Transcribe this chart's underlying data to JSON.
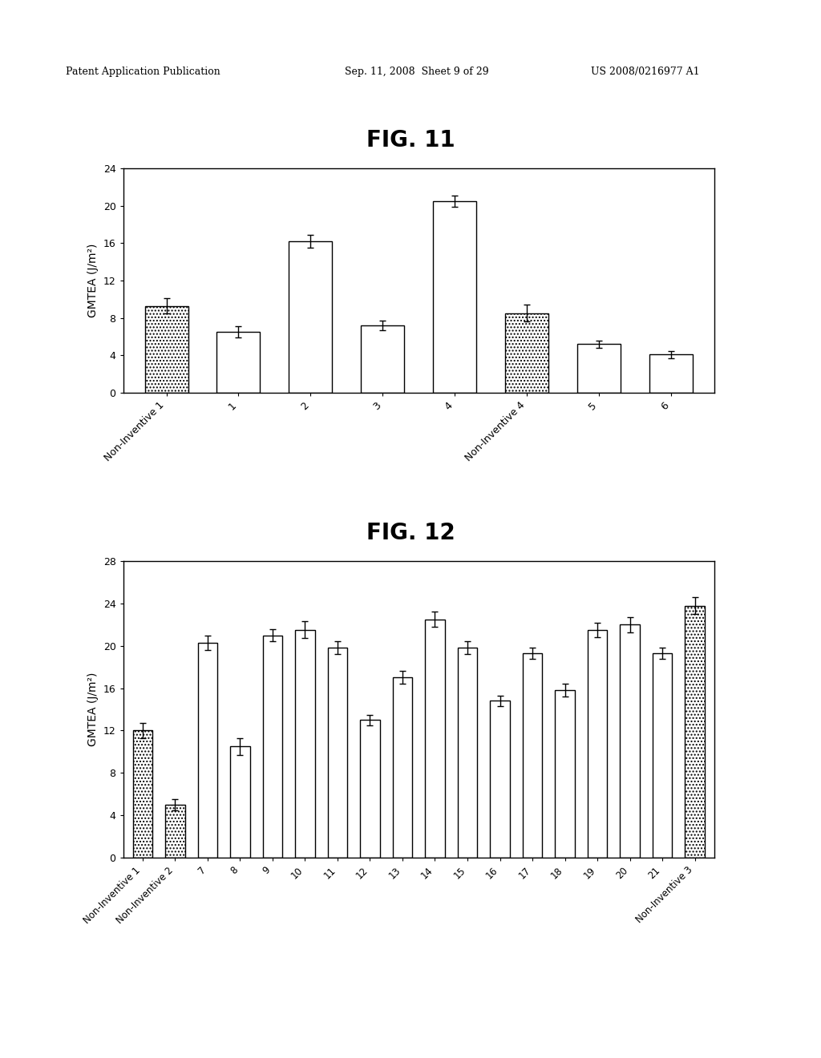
{
  "fig11": {
    "title": "FIG. 11",
    "ylabel": "GMTEA (J/m²)",
    "ylim": [
      0,
      24
    ],
    "yticks": [
      0,
      4,
      8,
      12,
      16,
      20,
      24
    ],
    "categories": [
      "Non-Inventive 1",
      "1",
      "2",
      "3",
      "4",
      "Non-Inventive 4",
      "5",
      "6"
    ],
    "values": [
      9.3,
      6.5,
      16.2,
      7.2,
      20.5,
      8.5,
      5.2,
      4.1
    ],
    "errors": [
      0.8,
      0.6,
      0.7,
      0.5,
      0.6,
      0.9,
      0.4,
      0.4
    ],
    "dotted": [
      true,
      false,
      false,
      false,
      false,
      true,
      false,
      false
    ]
  },
  "fig12": {
    "title": "FIG. 12",
    "ylabel": "GMTEA (J/m²)",
    "ylim": [
      0,
      28
    ],
    "yticks": [
      0,
      4,
      8,
      12,
      16,
      20,
      24,
      28
    ],
    "categories": [
      "Non-Inventive 1",
      "Non-Inventive 2",
      "7",
      "8",
      "9",
      "10",
      "11",
      "12",
      "13",
      "14",
      "15",
      "16",
      "17",
      "18",
      "19",
      "20",
      "21",
      "Non-Inventive 3"
    ],
    "values": [
      12.0,
      5.0,
      20.3,
      10.5,
      21.0,
      21.5,
      19.8,
      13.0,
      17.0,
      22.5,
      19.8,
      14.8,
      19.3,
      15.8,
      21.5,
      22.0,
      19.3,
      23.8
    ],
    "errors": [
      0.7,
      0.5,
      0.7,
      0.8,
      0.6,
      0.8,
      0.6,
      0.5,
      0.6,
      0.7,
      0.6,
      0.5,
      0.5,
      0.6,
      0.7,
      0.7,
      0.5,
      0.8
    ],
    "dotted": [
      true,
      true,
      false,
      false,
      false,
      false,
      false,
      false,
      false,
      false,
      false,
      false,
      false,
      false,
      false,
      false,
      false,
      true
    ]
  },
  "header_left": "Patent Application Publication",
  "header_mid": "Sep. 11, 2008  Sheet 9 of 29",
  "header_right": "US 2008/0216977 A1",
  "bar_width": 0.6,
  "background_color": "#FFFFFF"
}
